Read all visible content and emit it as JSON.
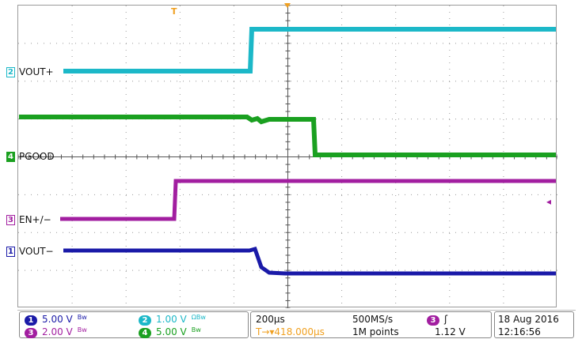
{
  "channels": [
    {
      "id": "1",
      "label": "VOUT−",
      "color": "#1a1aa8"
    },
    {
      "id": "2",
      "label": "VOUT+",
      "color": "#1cb8c8"
    },
    {
      "id": "3",
      "label": "EN+/−",
      "color": "#a21ea0"
    },
    {
      "id": "4",
      "label": "PGOOD",
      "color": "#1aa020"
    }
  ],
  "trigger_marker": "T",
  "status": {
    "ch1_num": "1",
    "ch1_scale": "5.00 V",
    "ch1_icon": "Bw",
    "ch2_num": "2",
    "ch2_scale": "1.00 V",
    "ch2_icon": "ΩBw",
    "ch3_num": "3",
    "ch3_scale": "2.00 V",
    "ch3_icon": "Bw",
    "ch4_num": "4",
    "ch4_scale": "5.00 V",
    "ch4_icon": "Bw",
    "timebase": "200µs",
    "trig_pos": "418.000µs",
    "trig_pos_prefix": "T→▾",
    "sample_rate": "500MS/s",
    "record_length": "1M points",
    "trig_source": "3",
    "trig_slope": "ʃ",
    "trig_level": "1.12 V",
    "date": "18 Aug 2016",
    "time": "12:16:56"
  }
}
